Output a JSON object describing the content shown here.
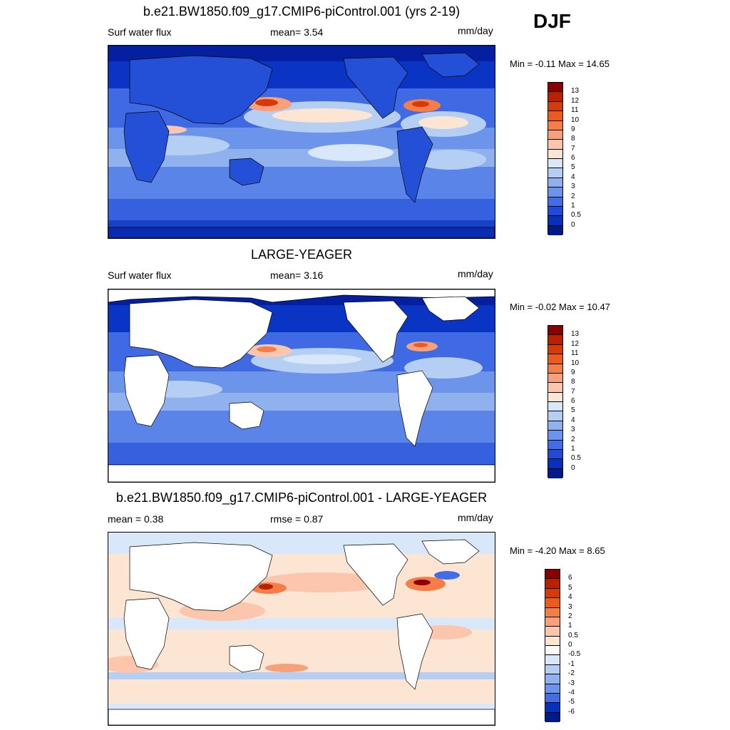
{
  "season": "DJF",
  "panels": [
    {
      "id": "model",
      "title": "b.e21.BW1850.f09_g17.CMIP6-piControl.001 (yrs 2-19)",
      "left_label": "Surf water flux",
      "center_label": "mean=   3.54",
      "units": "mm/day",
      "minmax": "Min =  -0.11 Max =  14.65",
      "colorbar": {
        "labels": [
          "13",
          "12",
          "11",
          "10",
          "9",
          "8",
          "7",
          "6",
          "5",
          "4",
          "3",
          "2",
          "1",
          "0.5",
          "0"
        ],
        "colors": [
          "#8a0000",
          "#b82000",
          "#d63a08",
          "#ee5a1e",
          "#f57d48",
          "#f8a07a",
          "#fbc6ab",
          "#fde5d3",
          "#d8e7fa",
          "#b5cff4",
          "#8fb2ee",
          "#6b94ea",
          "#416de6",
          "#1f4bd8",
          "#0631be",
          "#001a8a"
        ]
      }
    },
    {
      "id": "obs",
      "title": "LARGE-YEAGER",
      "left_label": "Surf water flux",
      "center_label": "mean=   3.16",
      "units": "mm/day",
      "minmax": "Min =  -0.02 Max =  10.47",
      "colorbar": {
        "labels": [
          "13",
          "12",
          "11",
          "10",
          "9",
          "8",
          "7",
          "6",
          "5",
          "4",
          "3",
          "2",
          "1",
          "0.5",
          "0"
        ],
        "colors": [
          "#8a0000",
          "#b82000",
          "#d63a08",
          "#ee5a1e",
          "#f57d48",
          "#f8a07a",
          "#fbc6ab",
          "#fde5d3",
          "#d8e7fa",
          "#b5cff4",
          "#8fb2ee",
          "#6b94ea",
          "#416de6",
          "#1f4bd8",
          "#0631be",
          "#001a8a"
        ]
      }
    },
    {
      "id": "diff",
      "title": "b.e21.BW1850.f09_g17.CMIP6-piControl.001 - LARGE-YEAGER",
      "left_label": "mean =   0.38",
      "center_label": "rmse =   0.87",
      "units": "mm/day",
      "minmax": "Min =  -4.20 Max =   8.65",
      "colorbar": {
        "labels": [
          "6",
          "5",
          "4",
          "3",
          "2",
          "1",
          "0.5",
          "0",
          "-0.5",
          "-1",
          "-2",
          "-3",
          "-4",
          "-5",
          "-6"
        ],
        "colors": [
          "#8a0000",
          "#b82000",
          "#d63a08",
          "#ee5a1e",
          "#f57d48",
          "#f8a07a",
          "#fbc6ab",
          "#fde5d3",
          "#fffaf5",
          "#d8e7fa",
          "#b5cff4",
          "#8fb2ee",
          "#6b94ea",
          "#416de6",
          "#0631be",
          "#001a8a"
        ]
      }
    }
  ]
}
